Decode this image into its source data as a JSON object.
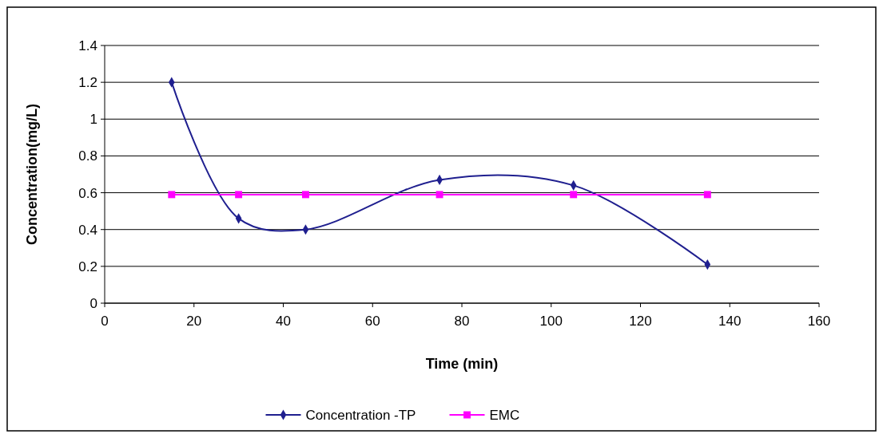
{
  "chart_data": {
    "type": "line",
    "xlabel": "Time (min)",
    "ylabel": "Concentration(mg/L)",
    "xlim": [
      0,
      160
    ],
    "xticks": [
      0,
      20,
      40,
      60,
      80,
      100,
      120,
      140,
      160
    ],
    "ylim": [
      0,
      1.4
    ],
    "yticks": [
      0,
      0.2,
      0.4,
      0.6,
      0.8,
      1,
      1.2,
      1.4
    ],
    "grid": "y",
    "legend": "bottom",
    "series": [
      {
        "name": "Concentration -TP",
        "color": "#1f1f8f",
        "marker": "diamond",
        "x": [
          15,
          30,
          45,
          75,
          105,
          135
        ],
        "values": [
          1.2,
          0.46,
          0.4,
          0.67,
          0.64,
          0.21
        ]
      },
      {
        "name": "EMC",
        "color": "#ff00ff",
        "marker": "square",
        "x": [
          15,
          30,
          45,
          75,
          105,
          135
        ],
        "values": [
          0.59,
          0.59,
          0.59,
          0.59,
          0.59,
          0.59
        ]
      }
    ]
  }
}
